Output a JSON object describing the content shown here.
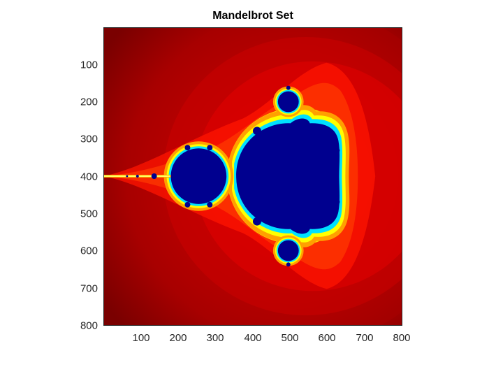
{
  "title": "Mandelbrot Set",
  "axes": {
    "x_ticks": [
      "100",
      "200",
      "300",
      "400",
      "500",
      "600",
      "700",
      "800"
    ],
    "y_ticks": [
      "100",
      "200",
      "300",
      "400",
      "500",
      "600",
      "700",
      "800"
    ],
    "xlim": [
      1,
      800
    ],
    "ylim": [
      1,
      800
    ],
    "y_direction": "reverse"
  },
  "colormap": {
    "name": "jet",
    "set_color": "#00008f",
    "outer_color": "#800000",
    "mid_color": "#ff0000",
    "edge_colors": [
      "#ffff00",
      "#00ffff",
      "#00aaff"
    ]
  }
}
